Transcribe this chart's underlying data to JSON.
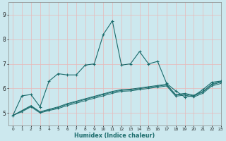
{
  "xlabel": "Humidex (Indice chaleur)",
  "background_color": "#cce8ee",
  "line_color": "#1a6b6b",
  "grid_color": "#e8b8b8",
  "xlim": [
    -0.5,
    23
  ],
  "ylim": [
    4.5,
    9.5
  ],
  "yticks": [
    5,
    6,
    7,
    8,
    9
  ],
  "ytick_labels": [
    "5",
    "6",
    "7",
    "8",
    "9"
  ],
  "xticks": [
    0,
    1,
    2,
    3,
    4,
    5,
    6,
    7,
    8,
    9,
    10,
    11,
    12,
    13,
    14,
    15,
    16,
    17,
    18,
    19,
    20,
    21,
    22,
    23
  ],
  "series_main": [
    4.9,
    5.7,
    5.75,
    5.25,
    6.3,
    6.6,
    6.55,
    6.55,
    6.95,
    7.0,
    8.2,
    8.75,
    6.95,
    7.0,
    7.5,
    7.0,
    7.1,
    6.2,
    5.9,
    5.65,
    5.7,
    5.95,
    6.25,
    6.3
  ],
  "series_smooth": [
    [
      4.9,
      5.1,
      5.3,
      5.05,
      5.15,
      5.25,
      5.38,
      5.48,
      5.58,
      5.68,
      5.78,
      5.88,
      5.95,
      5.97,
      6.02,
      6.07,
      6.12,
      6.17,
      5.75,
      5.8,
      5.72,
      5.88,
      6.18,
      6.28
    ],
    [
      4.9,
      5.08,
      5.28,
      5.03,
      5.13,
      5.22,
      5.35,
      5.45,
      5.55,
      5.65,
      5.75,
      5.85,
      5.92,
      5.94,
      5.99,
      6.04,
      6.09,
      6.14,
      5.72,
      5.77,
      5.69,
      5.85,
      6.15,
      6.25
    ],
    [
      4.9,
      5.05,
      5.25,
      5.0,
      5.1,
      5.18,
      5.3,
      5.4,
      5.5,
      5.6,
      5.7,
      5.8,
      5.88,
      5.9,
      5.95,
      6.0,
      6.05,
      6.1,
      5.68,
      5.73,
      5.65,
      5.8,
      6.1,
      6.2
    ]
  ]
}
